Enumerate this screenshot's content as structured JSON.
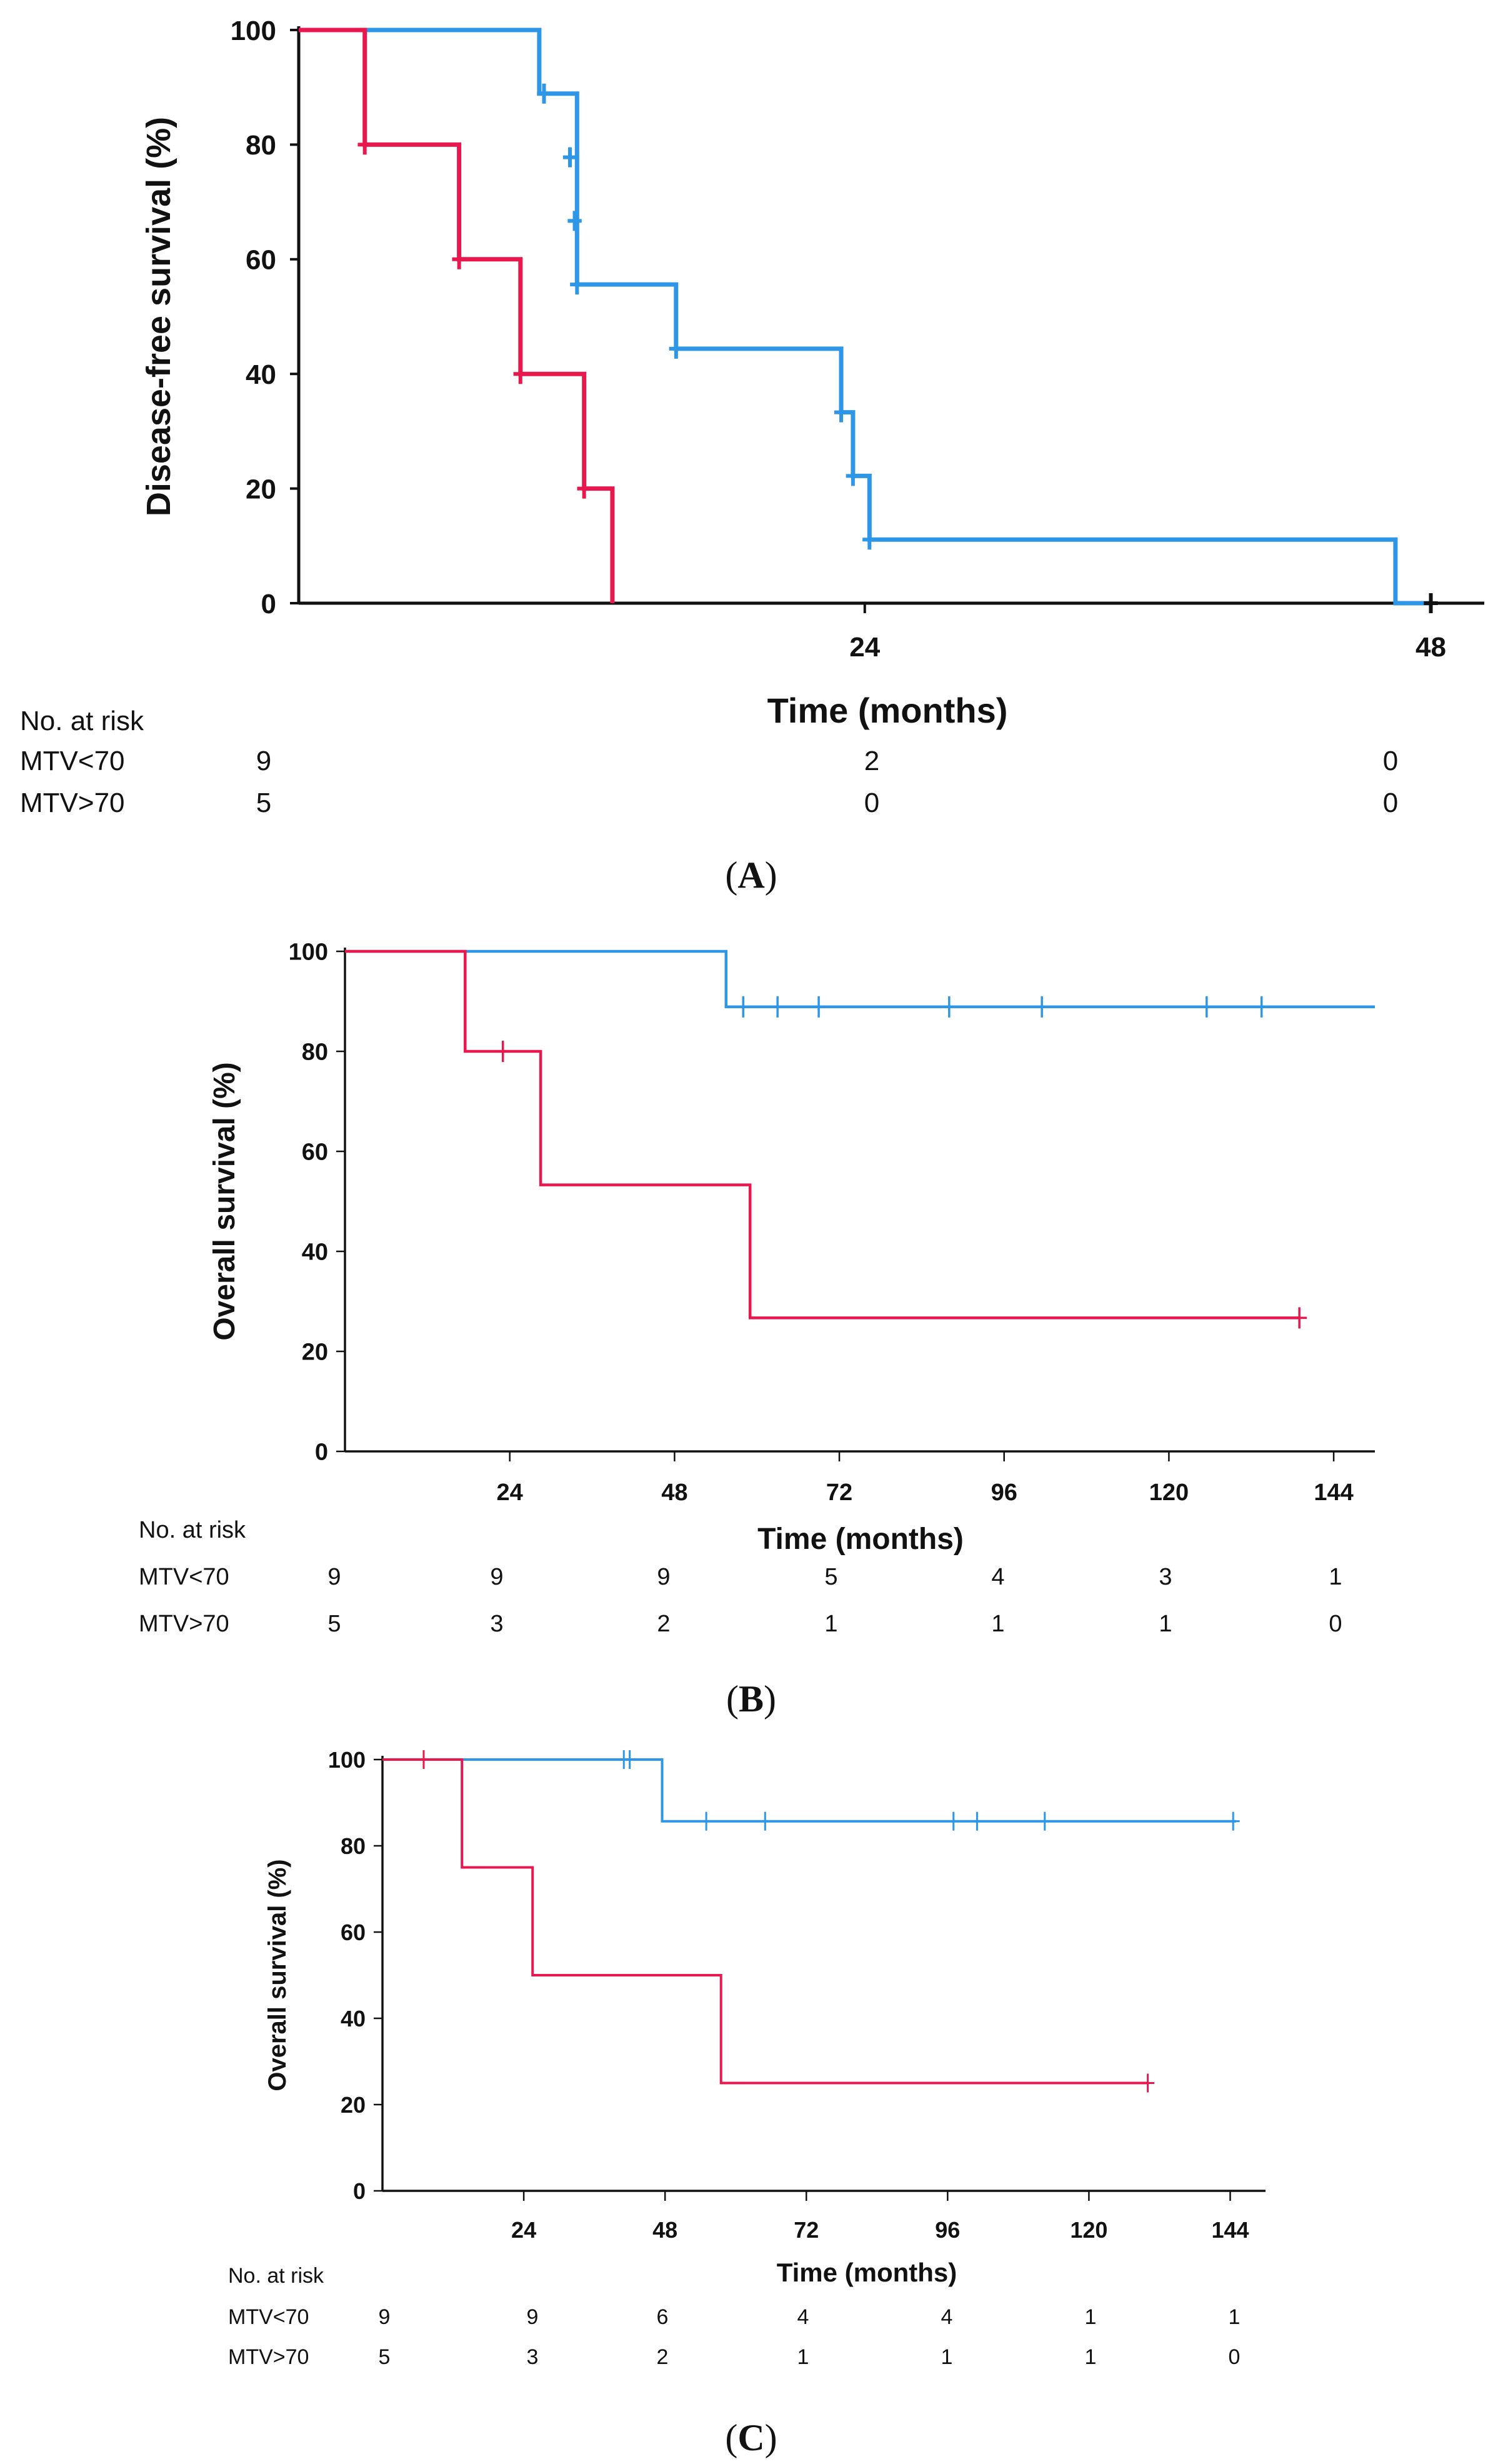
{
  "chart_data": [
    {
      "panel": "A",
      "type": "line",
      "step": true,
      "title": "",
      "xlabel": "Time (months)",
      "ylabel": "Disease-free survival (%)",
      "xlim": [
        0,
        50
      ],
      "ylim": [
        0,
        100
      ],
      "xticks": [
        24,
        48
      ],
      "yticks": [
        0,
        20,
        40,
        60,
        80,
        100
      ],
      "panel_label": "A",
      "series": [
        {
          "name": "MTV<70",
          "color": "#2e96e6",
          "steps": [
            [
              0,
              100
            ],
            [
              10.2,
              100
            ],
            [
              10.2,
              88.9
            ],
            [
              11.8,
              88.9
            ],
            [
              11.8,
              77.8
            ],
            [
              11.8,
              66.7
            ],
            [
              11.8,
              55.6
            ],
            [
              16,
              55.6
            ],
            [
              16,
              44.4
            ],
            [
              23,
              44.4
            ],
            [
              23,
              33.3
            ],
            [
              23.5,
              33.3
            ],
            [
              23.5,
              22.2
            ],
            [
              24.2,
              22.2
            ],
            [
              24.2,
              11.1
            ],
            [
              46.5,
              11.1
            ],
            [
              46.5,
              0
            ],
            [
              48,
              0
            ]
          ],
          "censors": [
            [
              10.4,
              88.9
            ],
            [
              11.5,
              77.8
            ],
            [
              11.7,
              66.7
            ],
            [
              11.8,
              55.6
            ],
            [
              16,
              44.4
            ],
            [
              23,
              33.3
            ],
            [
              23.5,
              22.2
            ],
            [
              24.2,
              11.1
            ],
            [
              48,
              0
            ]
          ]
        },
        {
          "name": "MTV>70",
          "color": "#e8184f",
          "steps": [
            [
              0,
              100
            ],
            [
              2.8,
              100
            ],
            [
              2.8,
              80
            ],
            [
              6.8,
              80
            ],
            [
              6.8,
              60
            ],
            [
              9.4,
              60
            ],
            [
              9.4,
              40
            ],
            [
              12.1,
              40
            ],
            [
              12.1,
              20
            ],
            [
              13.3,
              20
            ],
            [
              13.3,
              0
            ]
          ],
          "censors": [
            [
              2.8,
              80
            ],
            [
              6.8,
              60
            ],
            [
              9.4,
              40
            ],
            [
              12.1,
              20
            ]
          ]
        }
      ],
      "risk_table": {
        "header": "No. at risk",
        "times": [
          0,
          24,
          48
        ],
        "rows": [
          {
            "label": "MTV<70",
            "counts": [
              "9",
              "2",
              "0"
            ]
          },
          {
            "label": "MTV>70",
            "counts": [
              "5",
              "0",
              "0"
            ]
          }
        ]
      }
    },
    {
      "panel": "B",
      "type": "line",
      "step": true,
      "title": "",
      "xlabel": "Time (months)",
      "ylabel": "Overall survival (%)",
      "xlim": [
        0,
        150
      ],
      "ylim": [
        0,
        100
      ],
      "xticks": [
        24,
        48,
        72,
        96,
        120,
        144
      ],
      "yticks": [
        0,
        20,
        40,
        60,
        80,
        100
      ],
      "panel_label": "B",
      "series": [
        {
          "name": "MTV<70",
          "color": "#2e96e6",
          "steps": [
            [
              0,
              100
            ],
            [
              55.5,
              100
            ],
            [
              55.5,
              88.9
            ],
            [
              150,
              88.9
            ]
          ],
          "censors": [
            [
              58,
              88.9
            ],
            [
              63,
              88.9
            ],
            [
              69,
              88.9
            ],
            [
              88,
              88.9
            ],
            [
              101.5,
              88.9
            ],
            [
              125.5,
              88.9
            ],
            [
              133.5,
              88.9
            ]
          ]
        },
        {
          "name": "MTV>70",
          "color": "#e8184f",
          "steps": [
            [
              0,
              100
            ],
            [
              17.5,
              100
            ],
            [
              17.5,
              80
            ],
            [
              28.5,
              80
            ],
            [
              28.5,
              53.3
            ],
            [
              59,
              53.3
            ],
            [
              59,
              26.7
            ],
            [
              139,
              26.7
            ]
          ],
          "censors": [
            [
              23,
              80
            ],
            [
              139,
              26.7
            ]
          ]
        }
      ],
      "risk_table": {
        "header": "No. at risk",
        "times": [
          0,
          24,
          48,
          72,
          96,
          120,
          144
        ],
        "rows": [
          {
            "label": "MTV<70",
            "counts": [
              "9",
              "9",
              "9",
              "5",
              "4",
              "3",
              "1"
            ]
          },
          {
            "label": "MTV>70",
            "counts": [
              "5",
              "3",
              "2",
              "1",
              "1",
              "1",
              "0"
            ]
          }
        ]
      }
    },
    {
      "panel": "C",
      "type": "line",
      "step": true,
      "title": "",
      "xlabel": "Time (months)",
      "ylabel": "Overall survival (%)",
      "xlim": [
        0,
        150
      ],
      "ylim": [
        0,
        100
      ],
      "xticks": [
        24,
        48,
        72,
        96,
        120,
        144
      ],
      "yticks": [
        0,
        20,
        40,
        60,
        80,
        100
      ],
      "panel_label": "C",
      "series": [
        {
          "name": "MTV<70",
          "color": "#2e96e6",
          "steps": [
            [
              0,
              100
            ],
            [
              47.5,
              100
            ],
            [
              47.5,
              85.7
            ],
            [
              145,
              85.7
            ]
          ],
          "censors": [
            [
              41,
              100
            ],
            [
              42,
              100
            ],
            [
              55,
              85.7
            ],
            [
              65,
              85.7
            ],
            [
              97,
              85.7
            ],
            [
              101,
              85.7
            ],
            [
              112.5,
              85.7
            ],
            [
              144.5,
              85.7
            ]
          ]
        },
        {
          "name": "MTV>70",
          "color": "#e8184f",
          "steps": [
            [
              0,
              100
            ],
            [
              13.5,
              100
            ],
            [
              13.5,
              75
            ],
            [
              25.5,
              75
            ],
            [
              25.5,
              50
            ],
            [
              57.5,
              50
            ],
            [
              57.5,
              25
            ],
            [
              130,
              25
            ]
          ],
          "censors": [
            [
              7,
              100
            ],
            [
              130,
              25
            ]
          ]
        }
      ],
      "risk_table": {
        "header": "No. at risk",
        "times": [
          0,
          24,
          48,
          72,
          96,
          120,
          144
        ],
        "rows": [
          {
            "label": "MTV<70",
            "counts": [
              "9",
              "9",
              "6",
              "4",
              "4",
              "1",
              "1"
            ]
          },
          {
            "label": "MTV>70",
            "counts": [
              "5",
              "3",
              "2",
              "1",
              "1",
              "1",
              "0"
            ]
          }
        ]
      }
    }
  ]
}
